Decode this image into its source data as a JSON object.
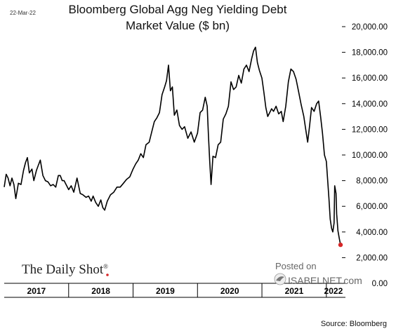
{
  "header": {
    "date_stamp": "22-Mar-22",
    "title_line1": "Bloomberg Global Agg Neg Yielding Debt",
    "title_line2": "Market Value ($ bn)"
  },
  "branding": {
    "daily_shot": "The Daily Shot",
    "registered_mark": "®",
    "posted_on": "Posted on",
    "isabelnet": "ISABELNET.com"
  },
  "footer": {
    "source": "Source: Bloomberg"
  },
  "colors": {
    "line": "#000000",
    "last_point": "#d62728",
    "axis": "#000000"
  },
  "chart_data": {
    "type": "line",
    "title": "Bloomberg Global Agg Neg Yielding Debt Market Value ($ bn)",
    "xlabel": "",
    "ylabel": "",
    "y_axis_position": "right",
    "ylim": [
      0,
      20000
    ],
    "y_ticks": [
      0,
      2000,
      4000,
      6000,
      8000,
      10000,
      12000,
      14000,
      16000,
      18000,
      20000
    ],
    "y_tick_labels": [
      "0.00",
      "2,000.00",
      "4,000.00",
      "6,000.00",
      "8,000.00",
      "10,000.00",
      "12,000.00",
      "14,000.00",
      "16,000.00",
      "18,000.00",
      "20,000.00"
    ],
    "x_domain": [
      2017.0,
      2022.22
    ],
    "x_categories": [
      "2017",
      "2018",
      "2019",
      "2020",
      "2021",
      "2022"
    ],
    "year_boundaries": [
      2018,
      2019,
      2020,
      2021,
      2022
    ],
    "grid": false,
    "last_point_marker": {
      "x": 2022.22,
      "y": 3000
    },
    "series": [
      {
        "values": [
          [
            2017.0,
            7500
          ],
          [
            2017.03,
            8500
          ],
          [
            2017.06,
            8200
          ],
          [
            2017.09,
            7600
          ],
          [
            2017.12,
            8200
          ],
          [
            2017.15,
            7700
          ],
          [
            2017.18,
            6600
          ],
          [
            2017.22,
            7800
          ],
          [
            2017.26,
            7700
          ],
          [
            2017.3,
            8800
          ],
          [
            2017.33,
            9400
          ],
          [
            2017.36,
            9800
          ],
          [
            2017.39,
            8600
          ],
          [
            2017.43,
            8900
          ],
          [
            2017.46,
            8000
          ],
          [
            2017.5,
            8800
          ],
          [
            2017.53,
            9200
          ],
          [
            2017.56,
            9600
          ],
          [
            2017.6,
            8400
          ],
          [
            2017.64,
            8000
          ],
          [
            2017.68,
            7900
          ],
          [
            2017.72,
            7600
          ],
          [
            2017.76,
            7700
          ],
          [
            2017.8,
            7500
          ],
          [
            2017.84,
            8400
          ],
          [
            2017.87,
            8400
          ],
          [
            2017.9,
            8000
          ],
          [
            2017.93,
            8000
          ],
          [
            2017.96,
            7700
          ],
          [
            2018.0,
            7300
          ],
          [
            2018.04,
            7600
          ],
          [
            2018.08,
            7100
          ],
          [
            2018.13,
            8200
          ],
          [
            2018.18,
            7000
          ],
          [
            2018.22,
            6900
          ],
          [
            2018.27,
            6700
          ],
          [
            2018.31,
            6800
          ],
          [
            2018.35,
            6400
          ],
          [
            2018.38,
            6800
          ],
          [
            2018.42,
            6300
          ],
          [
            2018.46,
            6000
          ],
          [
            2018.5,
            6500
          ],
          [
            2018.53,
            5900
          ],
          [
            2018.56,
            5700
          ],
          [
            2018.6,
            6400
          ],
          [
            2018.65,
            6900
          ],
          [
            2018.7,
            7100
          ],
          [
            2018.75,
            7500
          ],
          [
            2018.8,
            7500
          ],
          [
            2018.85,
            7800
          ],
          [
            2018.9,
            8100
          ],
          [
            2018.95,
            8300
          ],
          [
            2019.0,
            8900
          ],
          [
            2019.04,
            9300
          ],
          [
            2019.08,
            9600
          ],
          [
            2019.12,
            10100
          ],
          [
            2019.16,
            9800
          ],
          [
            2019.2,
            10800
          ],
          [
            2019.25,
            11000
          ],
          [
            2019.29,
            11800
          ],
          [
            2019.33,
            12600
          ],
          [
            2019.37,
            12900
          ],
          [
            2019.41,
            13300
          ],
          [
            2019.45,
            14700
          ],
          [
            2019.49,
            15300
          ],
          [
            2019.52,
            15800
          ],
          [
            2019.55,
            17000
          ],
          [
            2019.58,
            15000
          ],
          [
            2019.61,
            15300
          ],
          [
            2019.64,
            13100
          ],
          [
            2019.68,
            13500
          ],
          [
            2019.72,
            12300
          ],
          [
            2019.76,
            12000
          ],
          [
            2019.8,
            12200
          ],
          [
            2019.85,
            11300
          ],
          [
            2019.9,
            11800
          ],
          [
            2019.95,
            11000
          ],
          [
            2020.0,
            11700
          ],
          [
            2020.04,
            13300
          ],
          [
            2020.08,
            13500
          ],
          [
            2020.12,
            14500
          ],
          [
            2020.15,
            13800
          ],
          [
            2020.17,
            11500
          ],
          [
            2020.19,
            9500
          ],
          [
            2020.21,
            7700
          ],
          [
            2020.24,
            9900
          ],
          [
            2020.28,
            9800
          ],
          [
            2020.32,
            10800
          ],
          [
            2020.36,
            11000
          ],
          [
            2020.4,
            12800
          ],
          [
            2020.44,
            13200
          ],
          [
            2020.48,
            13800
          ],
          [
            2020.52,
            15700
          ],
          [
            2020.56,
            15100
          ],
          [
            2020.6,
            15300
          ],
          [
            2020.64,
            16200
          ],
          [
            2020.68,
            15600
          ],
          [
            2020.72,
            16700
          ],
          [
            2020.76,
            17000
          ],
          [
            2020.8,
            16500
          ],
          [
            2020.84,
            17500
          ],
          [
            2020.87,
            18100
          ],
          [
            2020.9,
            18400
          ],
          [
            2020.93,
            17200
          ],
          [
            2020.96,
            16600
          ],
          [
            2021.0,
            16000
          ],
          [
            2021.03,
            14900
          ],
          [
            2021.06,
            13700
          ],
          [
            2021.09,
            13000
          ],
          [
            2021.12,
            13300
          ],
          [
            2021.15,
            13600
          ],
          [
            2021.18,
            13400
          ],
          [
            2021.22,
            13800
          ],
          [
            2021.26,
            13200
          ],
          [
            2021.3,
            13400
          ],
          [
            2021.33,
            12600
          ],
          [
            2021.37,
            13800
          ],
          [
            2021.41,
            15700
          ],
          [
            2021.45,
            16700
          ],
          [
            2021.49,
            16500
          ],
          [
            2021.53,
            15900
          ],
          [
            2021.57,
            14900
          ],
          [
            2021.61,
            13900
          ],
          [
            2021.65,
            13000
          ],
          [
            2021.68,
            12000
          ],
          [
            2021.71,
            11000
          ],
          [
            2021.74,
            12300
          ],
          [
            2021.77,
            13700
          ],
          [
            2021.81,
            13400
          ],
          [
            2021.85,
            14000
          ],
          [
            2021.88,
            14200
          ],
          [
            2021.91,
            13000
          ],
          [
            2021.94,
            11700
          ],
          [
            2021.97,
            10000
          ],
          [
            2022.0,
            9500
          ],
          [
            2022.02,
            8100
          ],
          [
            2022.04,
            6600
          ],
          [
            2022.06,
            5000
          ],
          [
            2022.08,
            4300
          ],
          [
            2022.1,
            4000
          ],
          [
            2022.12,
            4700
          ],
          [
            2022.13,
            7600
          ],
          [
            2022.15,
            7000
          ],
          [
            2022.16,
            5400
          ],
          [
            2022.18,
            4100
          ],
          [
            2022.2,
            3500
          ],
          [
            2022.22,
            3000
          ]
        ]
      }
    ]
  }
}
